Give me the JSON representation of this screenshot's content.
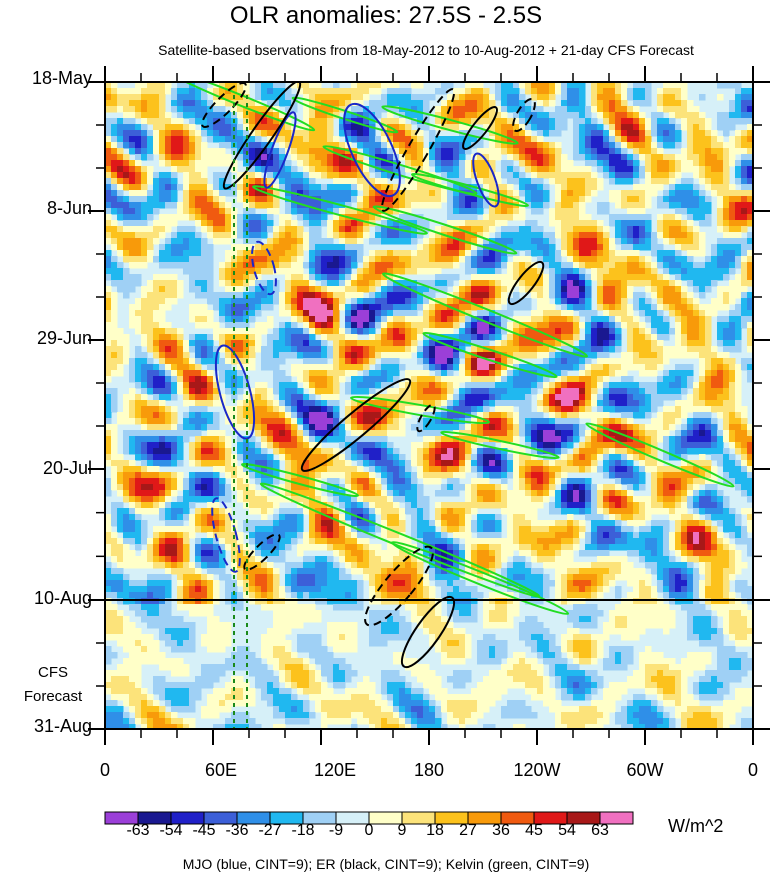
{
  "chart_data": {
    "type": "heatmap",
    "title": "OLR anomalies: 27.5S - 2.5S",
    "subtitle": "Satellite-based bservations from 18-May-2012 to 10-Aug-2012 + 21-day CFS Forecast",
    "x_ticks": [
      "0",
      "60E",
      "120E",
      "180",
      "120W",
      "60W",
      "0"
    ],
    "y_ticks": [
      "18-May",
      "8-Jun",
      "29-Jun",
      "20-Jul",
      "10-Aug",
      "31-Aug"
    ],
    "forecast_label_1": "CFS",
    "forecast_label_2": "Forecast",
    "observation_end": "10-Aug",
    "colorbar": {
      "units": "W/m^2",
      "levels": [
        "-63",
        "-54",
        "-45",
        "-36",
        "-27",
        "-18",
        "-9",
        "0",
        "9",
        "18",
        "27",
        "36",
        "45",
        "54",
        "63"
      ],
      "colors": [
        "#9b3fd8",
        "#1a1890",
        "#2020c8",
        "#3c5fd8",
        "#2f8fe8",
        "#20b8f0",
        "#9fd0f5",
        "#d6f0f8",
        "#ffffc8",
        "#fce37a",
        "#fcc21c",
        "#f89a0a",
        "#f05a10",
        "#e01818",
        "#a81818",
        "#f070c0"
      ]
    },
    "caption": "MJO (blue, CINT=9); ER (black, CINT=9); Kelvin (green, CINT=9)",
    "contour_colors": {
      "mjo": "#1a28c8",
      "er": "#000000",
      "kelvin": "#22dd22"
    }
  }
}
